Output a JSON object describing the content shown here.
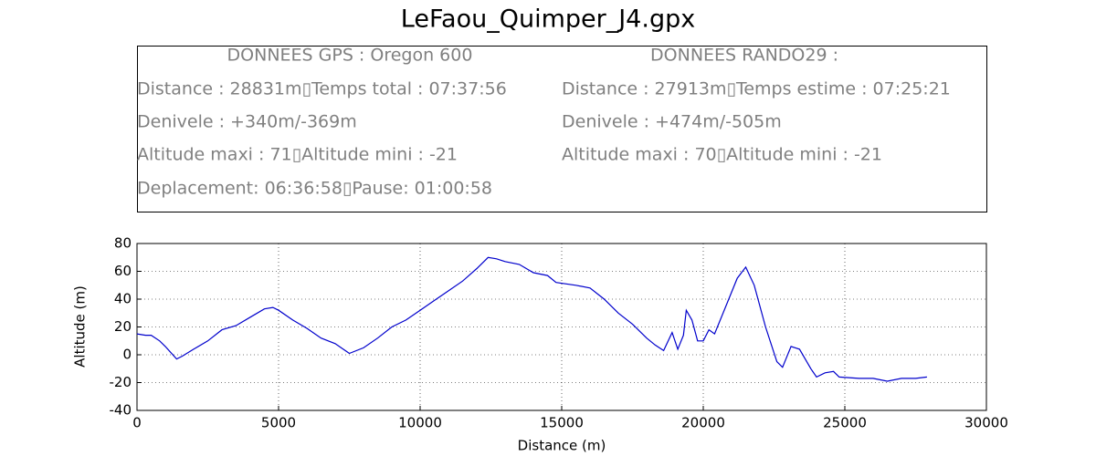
{
  "chart_data": {
    "type": "line",
    "title": "LeFaou_Quimper_J4.gpx",
    "info_box": {
      "left_header": "DONNEES GPS :  Oregon 600",
      "left": [
        "Distance : 28831m▯Temps total : 07:37:56",
        "Denivele : +340m/-369m",
        "Altitude maxi : 71▯Altitude mini : -21",
        "Deplacement: 06:36:58▯Pause: 01:00:58"
      ],
      "right_header": "DONNEES RANDO29  :",
      "right": [
        "Distance : 27913m▯Temps estime : 07:25:21",
        "Denivele : +474m/-505m",
        "Altitude maxi : 70▯Altitude mini : -21"
      ]
    },
    "x_label": "Distance (m)",
    "y_label": "Altitude (m)",
    "xlim": [
      0,
      30000
    ],
    "ylim": [
      -40,
      80
    ],
    "xticks": [
      0,
      5000,
      10000,
      15000,
      20000,
      25000,
      30000
    ],
    "yticks": [
      -40,
      -20,
      0,
      20,
      40,
      60,
      80
    ],
    "grid": true,
    "series": [
      {
        "color": "#0000cc",
        "x": [
          0,
          300,
          500,
          800,
          1000,
          1400,
          1600,
          2000,
          2500,
          3000,
          3500,
          4000,
          4500,
          4800,
          5000,
          5500,
          6000,
          6500,
          7000,
          7500,
          8000,
          8500,
          9000,
          9500,
          10000,
          10500,
          11000,
          11500,
          12000,
          12400,
          12700,
          13000,
          13500,
          14000,
          14500,
          14800,
          15500,
          16000,
          16500,
          17000,
          17500,
          18000,
          18300,
          18600,
          18900,
          19100,
          19300,
          19400,
          19600,
          19800,
          20000,
          20200,
          20400,
          20800,
          21200,
          21500,
          21800,
          22200,
          22600,
          22800,
          23100,
          23400,
          23800,
          24000,
          24300,
          24600,
          24800,
          25500,
          26000,
          26500,
          27000,
          27500,
          27900
        ],
        "values": [
          15,
          14,
          14,
          10,
          6,
          -3,
          -1,
          4,
          10,
          18,
          21,
          27,
          33,
          34,
          32,
          25,
          19,
          12,
          8,
          1,
          5,
          12,
          20,
          25,
          32,
          39,
          46,
          53,
          62,
          70,
          69,
          67,
          65,
          59,
          57,
          52,
          50,
          48,
          40,
          30,
          22,
          12,
          7,
          3,
          16,
          4,
          14,
          32,
          25,
          10,
          10,
          18,
          15,
          35,
          55,
          63,
          50,
          20,
          -5,
          -9,
          6,
          4,
          -10,
          -16,
          -13,
          -12,
          -16,
          -17,
          -17,
          -19,
          -17,
          -17,
          -16
        ]
      }
    ]
  }
}
